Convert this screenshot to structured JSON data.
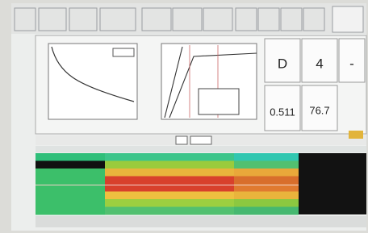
{
  "readouts": [
    "D",
    "4",
    "-",
    "0.511",
    "76.7"
  ]
}
